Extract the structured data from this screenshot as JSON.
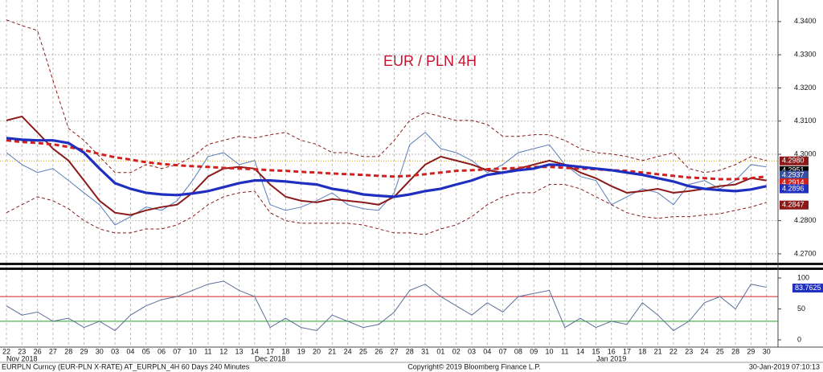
{
  "chart_data": {
    "type": "line",
    "title": "EUR / PLN 4H",
    "categories": [
      "22",
      "23",
      "26",
      "27",
      "28",
      "29",
      "30",
      "03",
      "04",
      "05",
      "06",
      "07",
      "10",
      "11",
      "12",
      "13",
      "14",
      "17",
      "18",
      "19",
      "20",
      "21",
      "24",
      "25",
      "26",
      "27",
      "28",
      "31",
      "01",
      "02",
      "03",
      "04",
      "07",
      "08",
      "09",
      "10",
      "11",
      "14",
      "15",
      "16",
      "17",
      "18",
      "21",
      "22",
      "23",
      "24",
      "25",
      "28",
      "29",
      "30"
    ],
    "month_labels": [
      null,
      "Nov 2018",
      null,
      null,
      null,
      null,
      null,
      null,
      null,
      null,
      null,
      null,
      null,
      null,
      null,
      null,
      null,
      "Dec 2018",
      null,
      null,
      null,
      null,
      null,
      null,
      null,
      null,
      null,
      null,
      null,
      null,
      null,
      null,
      null,
      null,
      null,
      null,
      null,
      null,
      null,
      "Jan 2019",
      null,
      null,
      null,
      null,
      null,
      null,
      null,
      null,
      null,
      null
    ],
    "ylim": [
      4.2678,
      4.3465
    ],
    "yticks": [
      {
        "value": 4.27,
        "label": "4.2700"
      },
      {
        "value": 4.28,
        "label": "4.2800"
      },
      {
        "value": 4.3,
        "label": "4.3000"
      },
      {
        "value": 4.31,
        "label": "4.3100"
      },
      {
        "value": 4.32,
        "label": "4.3200"
      },
      {
        "value": 4.33,
        "label": "4.3300"
      },
      {
        "value": 4.34,
        "label": "4.3400"
      }
    ],
    "series": [
      {
        "name": "EURPLN",
        "color": "#5b7db8",
        "style": "thin",
        "values": [
          4.3005,
          4.2969,
          4.2945,
          4.2957,
          4.2921,
          4.2884,
          4.2848,
          4.2787,
          4.2812,
          4.2841,
          4.2831,
          4.286,
          4.2921,
          4.2993,
          4.3005,
          4.2969,
          4.2981,
          4.2848,
          4.2831,
          4.2841,
          4.286,
          4.2884,
          4.2848,
          4.2836,
          4.2831,
          4.2884,
          4.3029,
          4.3066,
          4.3017,
          4.3005,
          4.2981,
          4.2945,
          4.2969,
          4.3005,
          4.3017,
          4.3029,
          4.2969,
          4.2933,
          4.2921,
          4.2848,
          4.2872,
          4.2896,
          4.2884,
          4.2848,
          4.2909,
          4.2921,
          4.2896,
          4.2921,
          4.2969,
          4.2962
        ]
      },
      {
        "name": "Upper band",
        "color": "#8b1a1a",
        "style": "band",
        "values": [
          4.3405,
          4.3388,
          4.3373,
          4.3223,
          4.3078,
          4.3042,
          4.2993,
          4.2945,
          4.2945,
          4.2969,
          4.2957,
          4.2969,
          4.2993,
          4.303,
          4.3042,
          4.3054,
          4.3049,
          4.3059,
          4.3066,
          4.3042,
          4.303,
          4.3005,
          4.3005,
          4.2993,
          4.2993,
          4.3042,
          4.3102,
          4.3126,
          4.3114,
          4.3102,
          4.3102,
          4.309,
          4.3054,
          4.3054,
          4.3059,
          4.3059,
          4.3042,
          4.3017,
          4.3005,
          4.3001,
          4.2993,
          4.2981,
          4.2993,
          4.3005,
          4.2957,
          4.2945,
          4.2952,
          4.2969,
          4.2993,
          4.2981
        ]
      },
      {
        "name": "Lower band",
        "color": "#8b1a1a",
        "style": "band",
        "values": [
          4.2824,
          4.2848,
          4.2872,
          4.286,
          4.2836,
          4.28,
          4.2775,
          4.2763,
          4.2763,
          4.2775,
          4.2775,
          4.2787,
          4.2812,
          4.2848,
          4.2872,
          4.2884,
          4.2889,
          4.2824,
          4.28,
          4.2792,
          4.2792,
          4.2792,
          4.2792,
          4.2787,
          4.2775,
          4.2763,
          4.2763,
          4.2758,
          4.2775,
          4.2787,
          4.2812,
          4.2848,
          4.2872,
          4.2884,
          4.2884,
          4.2909,
          4.2909,
          4.2896,
          4.2872,
          4.2848,
          4.2824,
          4.2812,
          4.2807,
          4.2812,
          4.2812,
          4.2817,
          4.2821,
          4.2831,
          4.2841,
          4.2855
        ]
      },
      {
        "name": "Short MA",
        "color": "#8b1a1a",
        "style": "mid",
        "values": [
          4.3102,
          4.3114,
          4.3066,
          4.3017,
          4.2981,
          4.2921,
          4.286,
          4.2824,
          4.2817,
          4.2831,
          4.2841,
          4.2848,
          4.2884,
          4.2933,
          4.2957,
          4.2962,
          4.2957,
          4.2909,
          4.2872,
          4.286,
          4.2855,
          4.2865,
          4.286,
          4.2855,
          4.2848,
          4.2872,
          4.2921,
          4.2969,
          4.2993,
          4.2981,
          4.2969,
          4.2952,
          4.2945,
          4.2957,
          4.2969,
          4.2981,
          4.2969,
          4.2945,
          4.2928,
          4.2904,
          4.2884,
          4.2889,
          4.2896,
          4.2884,
          4.2889,
          4.2896,
          4.2904,
          4.2909,
          4.2928,
          4.2921
        ]
      },
      {
        "name": "Long MA",
        "color": "#d0201f",
        "style": "dashed",
        "values": [
          4.3042,
          4.3037,
          4.3034,
          4.303,
          4.3022,
          4.3013,
          4.3001,
          4.2991,
          4.2984,
          4.2976,
          4.2971,
          4.2967,
          4.2964,
          4.2962,
          4.2959,
          4.2957,
          4.2955,
          4.2952,
          4.295,
          4.2947,
          4.2945,
          4.2942,
          4.294,
          4.2938,
          4.2935,
          4.2933,
          4.2935,
          4.294,
          4.2945,
          4.295,
          4.2952,
          4.2955,
          4.2957,
          4.2959,
          4.2962,
          4.2962,
          4.2959,
          4.2957,
          4.2955,
          4.2952,
          4.295,
          4.2945,
          4.294,
          4.2935,
          4.293,
          4.2928,
          4.2925,
          4.2925,
          4.2928,
          4.2933
        ]
      },
      {
        "name": "Mid MA",
        "color": "#1f2fbf",
        "style": "thick",
        "values": [
          4.3049,
          4.3044,
          4.3042,
          4.3042,
          4.3034,
          4.3005,
          4.2957,
          4.2913,
          4.2896,
          4.2884,
          4.2879,
          4.2877,
          4.2882,
          4.2889,
          4.2901,
          4.2913,
          4.2921,
          4.2921,
          4.2918,
          4.2913,
          4.2909,
          4.2896,
          4.2889,
          4.2879,
          4.2875,
          4.2872,
          4.2879,
          4.2889,
          4.2896,
          4.2909,
          4.2921,
          4.2938,
          4.2945,
          4.2952,
          4.2957,
          4.2969,
          4.2967,
          4.2962,
          4.2957,
          4.2952,
          4.2945,
          4.2938,
          4.2928,
          4.2918,
          4.2904,
          4.2896,
          4.2892,
          4.2889,
          4.2894,
          4.2904
        ]
      }
    ],
    "last_values": [
      {
        "value": 4.298,
        "label": "4.2980",
        "color": "#8b1a1a"
      },
      {
        "value": 4.2951,
        "label": "4.2951",
        "color": "#000000"
      },
      {
        "value": 4.2937,
        "label": "4.2937",
        "color": "#3a4fa0"
      },
      {
        "value": 4.2914,
        "label": "4.2914",
        "color": "#d0201f"
      },
      {
        "value": 4.2896,
        "label": "4.2896",
        "color": "#1f2fbf"
      },
      {
        "value": 4.2847,
        "label": "4.2847",
        "color": "#8b1a1a"
      }
    ],
    "oscillator": {
      "ylim": [
        -11.7,
        110.4
      ],
      "yticks": [
        0,
        50,
        100
      ],
      "color": "#5b6f98",
      "levels": [
        {
          "value": 70,
          "color": "#d0201f"
        },
        {
          "value": 30,
          "color": "#2aa02a"
        }
      ],
      "values": [
        55,
        40,
        45,
        30,
        35,
        20,
        30,
        15,
        40,
        55,
        65,
        70,
        80,
        90,
        95,
        80,
        70,
        20,
        35,
        20,
        15,
        40,
        30,
        20,
        25,
        45,
        80,
        90,
        70,
        55,
        40,
        60,
        45,
        70,
        75,
        80,
        20,
        35,
        20,
        30,
        25,
        60,
        40,
        15,
        30,
        60,
        70,
        50,
        90,
        85
      ],
      "last_value": {
        "value": 83.7625,
        "label": "83.7625"
      }
    },
    "footer": {
      "left": "EURPLN Curncy (EUR-PLN X-RATE) AT_EURPLN_4H 60 Days 240 Minutes",
      "center": "Copyright© 2019 Bloomberg Finance L.P.",
      "right": "30-Jan-2019 07:10:13"
    }
  }
}
